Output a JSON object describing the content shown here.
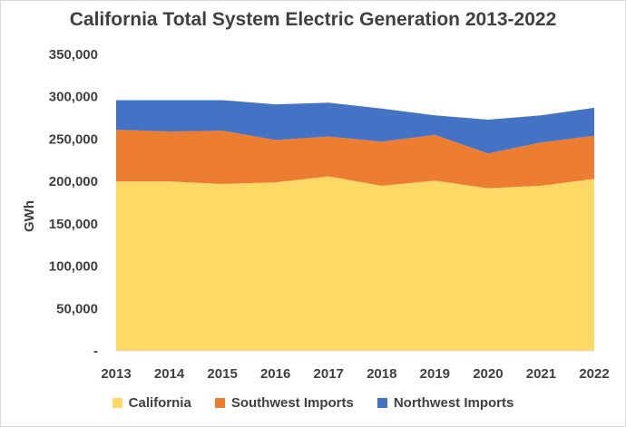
{
  "chart_data": {
    "type": "area",
    "stacked": true,
    "title": "California Total System Electric Generation 2013-2022",
    "ylabel": "GWh",
    "xlabel": "",
    "x": [
      "2013",
      "2014",
      "2015",
      "2016",
      "2017",
      "2018",
      "2019",
      "2020",
      "2021",
      "2022"
    ],
    "ylim": [
      0,
      350000
    ],
    "yticks": [
      "-",
      "50,000",
      "100,000",
      "150,000",
      "200,000",
      "250,000",
      "300,000",
      "350,000"
    ],
    "ytick_values": [
      0,
      50000,
      100000,
      150000,
      200000,
      250000,
      300000,
      350000
    ],
    "grid": false,
    "legend_position": "bottom",
    "series": [
      {
        "name": "California",
        "color": "#FFD966",
        "values": [
          200000,
          200000,
          197000,
          199000,
          206000,
          195000,
          201000,
          192000,
          195000,
          203000
        ]
      },
      {
        "name": "Southwest Imports",
        "color": "#ED7D31",
        "values": [
          61000,
          59000,
          63000,
          50000,
          47000,
          52000,
          54000,
          41000,
          51000,
          51000
        ]
      },
      {
        "name": "Northwest Imports",
        "color": "#4472C4",
        "values": [
          35000,
          37000,
          36000,
          42000,
          40000,
          39000,
          23000,
          40000,
          32000,
          33000
        ]
      }
    ]
  }
}
